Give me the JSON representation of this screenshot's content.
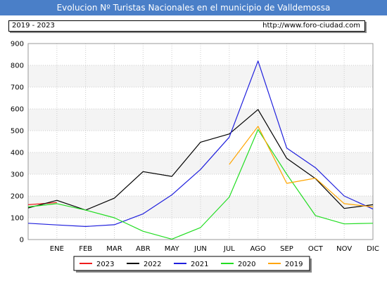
{
  "header": {
    "title": "Evolucion Nº Turistas Nacionales en el municipio de Valldemossa"
  },
  "info": {
    "period": "2019 - 2023",
    "url": "http://www.foro-ciudad.com"
  },
  "chart_data": {
    "type": "line",
    "categories": [
      "",
      "ENE",
      "FEB",
      "MAR",
      "ABR",
      "MAY",
      "JUN",
      "JUL",
      "AGO",
      "SEP",
      "OCT",
      "NOV",
      "DIC"
    ],
    "ylim": [
      0,
      900
    ],
    "yticks": [
      0,
      100,
      200,
      300,
      400,
      500,
      600,
      700,
      800,
      900
    ],
    "grid": true,
    "legend_position": "bottom",
    "series": [
      {
        "name": "2023",
        "color": "#ee1c1c",
        "values": [
          160,
          170,
          null,
          null,
          null,
          null,
          null,
          null,
          null,
          null,
          null,
          null,
          null
        ]
      },
      {
        "name": "2022",
        "color": "#000000",
        "values": [
          145,
          180,
          135,
          190,
          312,
          290,
          447,
          485,
          597,
          373,
          280,
          143,
          160
        ]
      },
      {
        "name": "2021",
        "color": "#1f1fdd",
        "values": [
          75,
          67,
          60,
          68,
          118,
          205,
          322,
          470,
          820,
          420,
          330,
          200,
          140
        ]
      },
      {
        "name": "2020",
        "color": "#22dd22",
        "values": [
          150,
          165,
          135,
          100,
          38,
          2,
          55,
          195,
          505,
          300,
          110,
          72,
          75
        ]
      },
      {
        "name": "2019",
        "color": "#ffa500",
        "values": [
          null,
          null,
          null,
          null,
          null,
          null,
          null,
          345,
          520,
          258,
          282,
          165,
          150
        ]
      }
    ]
  }
}
